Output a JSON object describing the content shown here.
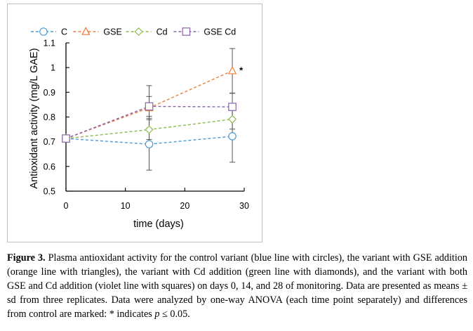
{
  "chart_data": {
    "type": "line",
    "title": "",
    "xlabel": "time (days)",
    "ylabel": "Antioxidant activity (mg/L GAE)",
    "xlim": [
      0,
      30
    ],
    "ylim": [
      0.5,
      1.1
    ],
    "x_ticks": [
      0,
      10,
      20,
      30
    ],
    "y_ticks": [
      0.5,
      0.6,
      0.7,
      0.8,
      0.9,
      1,
      1.1
    ],
    "x_tick_labels": [
      "0",
      "10",
      "20",
      "30"
    ],
    "y_tick_labels": [
      "0.5",
      "0.6",
      "0.7",
      "0.8",
      "0.9",
      "1",
      "1.1"
    ],
    "grid": false,
    "legend_position": "top",
    "series": [
      {
        "name": "C",
        "color": "#4a9bd6",
        "marker": "circle",
        "x": [
          0,
          14,
          28
        ],
        "values": [
          0.713,
          0.69,
          0.722
        ],
        "errors": [
          0,
          0.105,
          0.105
        ]
      },
      {
        "name": "GSE",
        "color": "#f07f3c",
        "marker": "triangle",
        "x": [
          0,
          14,
          28
        ],
        "values": [
          0.713,
          0.837,
          0.987
        ],
        "errors": [
          0,
          0.09,
          0.09
        ]
      },
      {
        "name": "Cd",
        "color": "#8dbb4c",
        "marker": "diamond",
        "x": [
          0,
          14,
          28
        ],
        "values": [
          0.713,
          0.749,
          0.791
        ],
        "errors": [
          0,
          0.04,
          0.04
        ]
      },
      {
        "name": "GSE Cd",
        "color": "#8a63a8",
        "marker": "square",
        "x": [
          0,
          14,
          28
        ],
        "values": [
          0.713,
          0.843,
          0.841
        ],
        "errors": [
          0,
          0.04,
          0.055
        ]
      }
    ],
    "annotations": [
      {
        "text": "*",
        "x": 28,
        "y": 0.987
      }
    ]
  },
  "caption": {
    "label": "Figure 3.",
    "text": " Plasma antioxidant activity for the control variant (blue line with circles), the variant with GSE addition (orange line with triangles), the variant with Cd addition (green line with diamonds), and the variant with both GSE and Cd addition (violet line with squares) on days 0, 14, and 28 of monitoring. Data are presented as means ± sd from three replicates. Data were analyzed by one-way ANOVA (each time point separately) and differences from control are marked: * indicates ",
    "p_symbol": "p",
    "p_rest": " ≤ 0.05."
  }
}
